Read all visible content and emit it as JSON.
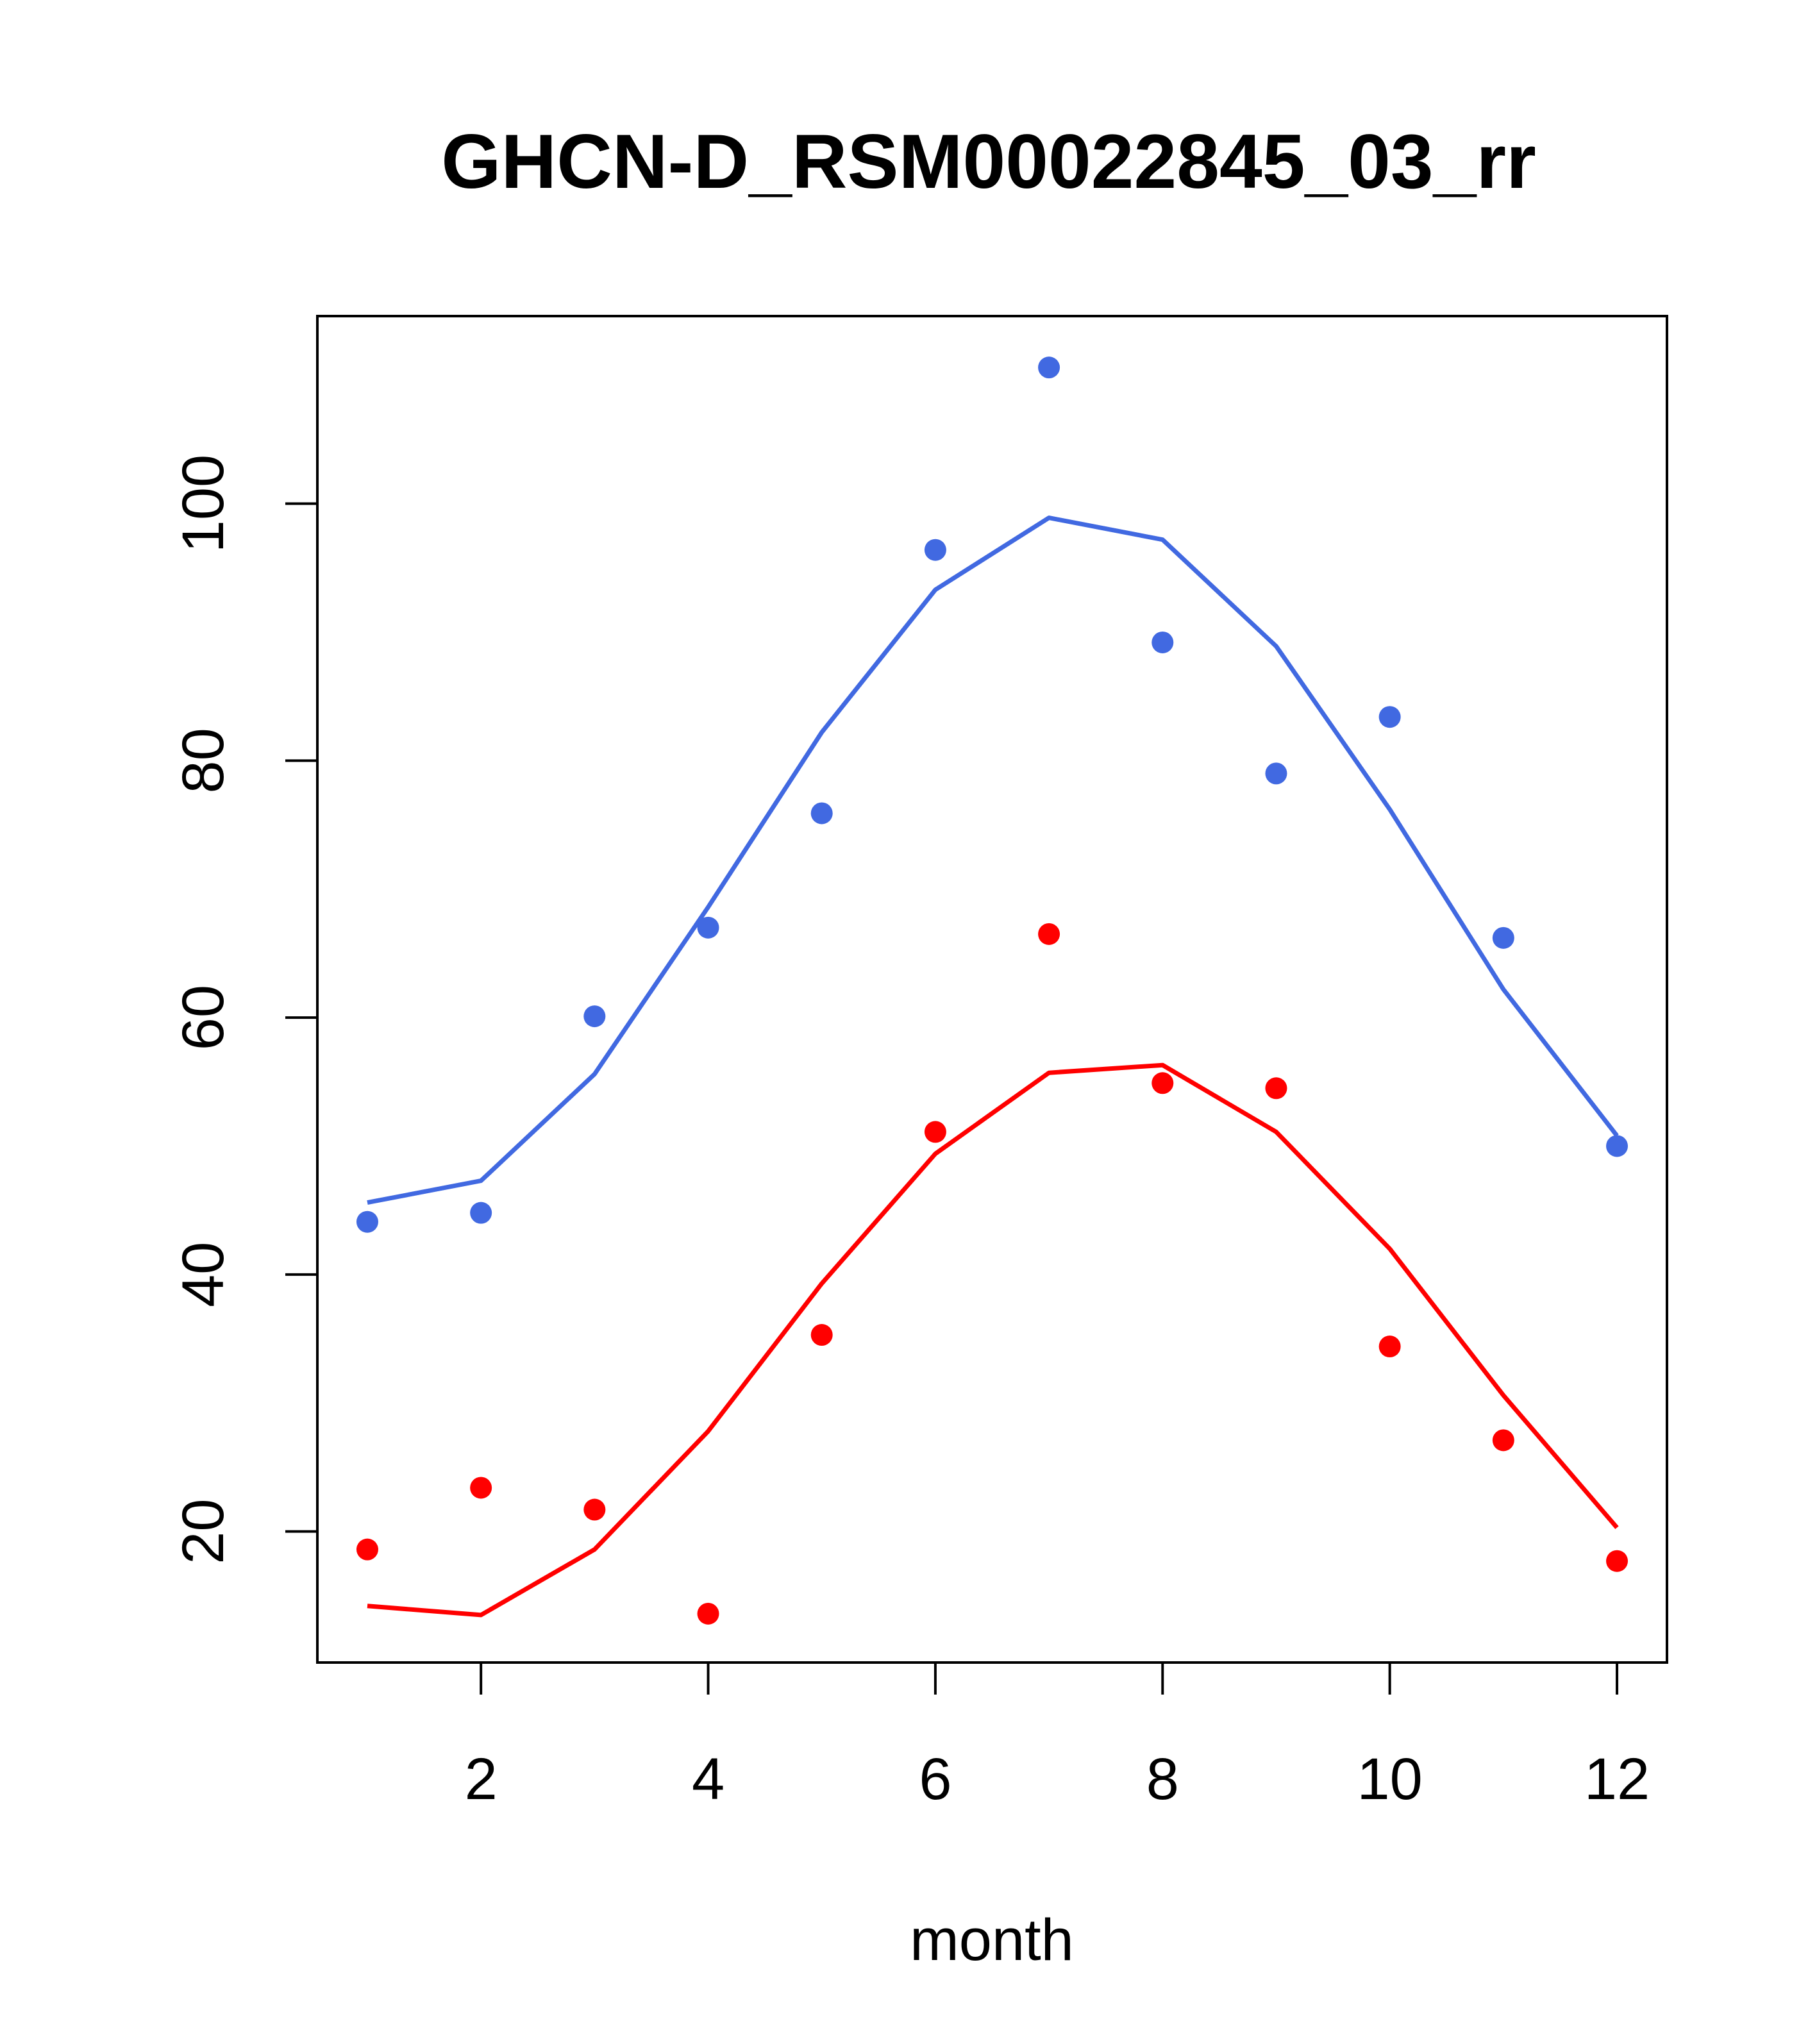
{
  "chart_data": {
    "type": "line",
    "title": "GHCN-D_RSM00022845_03_rr",
    "xlabel": "month",
    "ylabel": "",
    "xlim": [
      0.56,
      12.44
    ],
    "ylim": [
      9.8,
      114.6
    ],
    "xticks": [
      2,
      4,
      6,
      8,
      10,
      12
    ],
    "yticks": [
      20,
      40,
      60,
      80,
      100
    ],
    "grid": false,
    "legend": "none",
    "x": [
      1,
      2,
      3,
      4,
      5,
      6,
      7,
      8,
      9,
      10,
      11,
      12
    ],
    "series": [
      {
        "color": "#4169E1",
        "points": [
          44.1,
          44.8,
          60.1,
          67.0,
          75.9,
          96.4,
          110.6,
          89.2,
          79.0,
          83.4,
          66.2,
          50.0
        ],
        "line": [
          45.6,
          47.3,
          55.6,
          68.6,
          82.2,
          93.3,
          98.9,
          97.2,
          88.9,
          76.2,
          62.2,
          50.8
        ]
      },
      {
        "color": "#FF0000",
        "points": [
          18.6,
          23.4,
          21.7,
          13.6,
          35.3,
          51.1,
          66.5,
          54.9,
          54.5,
          34.4,
          27.1,
          17.7
        ],
        "line": [
          14.2,
          13.5,
          18.6,
          27.8,
          39.3,
          49.4,
          55.7,
          56.3,
          51.1,
          42.0,
          30.6,
          20.3
        ]
      }
    ]
  }
}
